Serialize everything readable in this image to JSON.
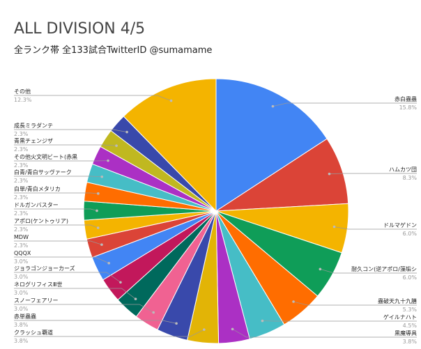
{
  "chart_data": {
    "type": "pie",
    "title": "ALL DIVISION 4/5",
    "subtitle": "全ランク帯 全133試合TwitterID @sumamame",
    "categories": [
      "赤白蟲蟲",
      "ハムカツ団",
      "ドルマゲドン",
      "耐久コン(逆アポロ/藻垢シ",
      "蟲破天九十九膳",
      "ゲイルナハト",
      "黒魔導具",
      "クラッシュ覇道",
      "赤単蟲蟲",
      "スノーフェアリー",
      "ネログリフィスⅢ世",
      "ジョラゴンジョーカーズ",
      "QQQX",
      "MDW",
      "アポロ(ケントゥリア)",
      "ドルガンバスター",
      "白単/青白メタリカ",
      "白青/青白サッヴァーク",
      "その他火文明ビート(赤黒",
      "青黒チェンジザ",
      "成長ミラダンテ",
      "その他"
    ],
    "values": [
      15.8,
      8.3,
      6.0,
      6.0,
      5.3,
      4.5,
      3.8,
      3.8,
      3.8,
      3.0,
      3.0,
      3.0,
      3.0,
      2.3,
      2.3,
      2.3,
      2.3,
      2.3,
      2.3,
      2.3,
      2.3,
      12.3
    ],
    "value_labels": [
      "15.8%",
      "8.3%",
      "6.0%",
      "6.0%",
      "5.3%",
      "4.5%",
      "3.8%",
      "3.8%",
      "3.8%",
      "3.0%",
      "3.0%",
      "3.0%",
      "3.0%",
      "2.3%",
      "2.3%",
      "2.3%",
      "2.3%",
      "2.3%",
      "2.3%",
      "2.3%",
      "2.3%",
      "12.3%"
    ],
    "colors": [
      "#4285f4",
      "#db4437",
      "#f4b400",
      "#0f9d58",
      "#ff6d00",
      "#46bdc6",
      "#ab30c4",
      "#e2b406",
      "#3949ab",
      "#f06292",
      "#00695c",
      "#c2185b",
      "#4285f4",
      "#db4437",
      "#f4b400",
      "#0f9d58",
      "#ff6d00",
      "#46bdc6",
      "#ab30c4",
      "#c0b820",
      "#3949ab",
      "#f4b400"
    ]
  }
}
